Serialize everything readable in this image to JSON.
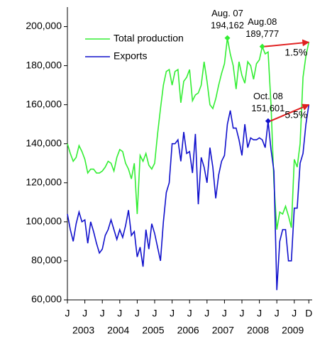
{
  "chart_data": {
    "type": "line",
    "categories": [
      "J",
      null,
      null,
      null,
      null,
      null,
      "J",
      null,
      null,
      null,
      null,
      null,
      "J",
      null,
      null,
      null,
      null,
      null,
      "J",
      null,
      null,
      null,
      null,
      null,
      "J",
      null,
      null,
      null,
      null,
      null,
      "J",
      null,
      null,
      null,
      null,
      null,
      "J",
      null,
      null,
      null,
      null,
      null,
      "J",
      null,
      null,
      null,
      null,
      null,
      "J",
      null,
      null,
      null,
      null,
      null,
      "J",
      null,
      null,
      null,
      null,
      null,
      "J",
      null,
      null,
      null,
      null,
      null,
      "J",
      null,
      null,
      null,
      null,
      null,
      "J",
      null,
      null,
      null,
      null,
      null,
      "J",
      null,
      null,
      null,
      null,
      "D"
    ],
    "year_labels": [
      "2003",
      "2004",
      "2005",
      "2006",
      "2007",
      "2008",
      "2009"
    ],
    "series": [
      {
        "name": "Total production",
        "color": "#33ee33",
        "values": [
          140000,
          135000,
          131000,
          133000,
          139000,
          136000,
          132000,
          125000,
          127000,
          127000,
          125000,
          125000,
          126000,
          128000,
          131000,
          130000,
          126000,
          133000,
          137000,
          136000,
          130000,
          127000,
          122000,
          130000,
          104000,
          134000,
          131000,
          135000,
          129000,
          127000,
          130000,
          145000,
          158000,
          170000,
          177000,
          178000,
          170000,
          177000,
          178000,
          161000,
          172000,
          174000,
          178000,
          162000,
          165000,
          166000,
          170000,
          182000,
          172000,
          160000,
          158000,
          163000,
          170000,
          176000,
          181000,
          194162,
          186000,
          180000,
          168000,
          182000,
          175000,
          171000,
          182000,
          180000,
          173000,
          181000,
          183000,
          189777,
          186000,
          187000,
          160000,
          120000,
          96000,
          105000,
          104000,
          108000,
          103000,
          97000,
          132000,
          128000,
          140000,
          174000,
          185000,
          192000
        ],
        "value_labels": [
          null,
          null,
          null,
          null,
          null,
          null,
          null,
          null,
          null,
          null,
          null,
          null,
          null,
          null,
          null,
          null,
          null,
          null,
          null,
          null,
          null,
          null,
          null,
          null,
          null,
          null,
          null,
          null,
          null,
          null,
          null,
          null,
          null,
          null,
          null,
          null,
          null,
          null,
          null,
          null,
          null,
          null,
          null,
          null,
          null,
          null,
          null,
          null,
          null,
          null,
          null,
          null,
          null,
          null,
          null,
          "194,162",
          null,
          null,
          null,
          null,
          null,
          null,
          null,
          null,
          null,
          null,
          null,
          "189,777",
          null,
          null,
          null,
          null,
          null,
          null,
          null,
          null,
          null,
          null,
          null,
          null,
          null,
          null,
          null,
          null
        ]
      },
      {
        "name": "Exports",
        "color": "#1010cc",
        "values": [
          104000,
          96000,
          90000,
          99000,
          105000,
          100000,
          101000,
          89000,
          100000,
          95000,
          89000,
          84000,
          86000,
          93000,
          96000,
          101000,
          96000,
          91000,
          96000,
          92000,
          98000,
          106000,
          93000,
          95000,
          82000,
          87000,
          77000,
          96000,
          86000,
          99000,
          94000,
          87000,
          80000,
          100000,
          115000,
          120000,
          140000,
          140000,
          142000,
          131000,
          146000,
          135000,
          136000,
          125000,
          145000,
          109000,
          133000,
          128000,
          120000,
          138000,
          128000,
          112000,
          124000,
          131000,
          134000,
          150000,
          157000,
          148000,
          148000,
          142000,
          134000,
          150000,
          138000,
          143000,
          142000,
          142000,
          143000,
          142000,
          138000,
          151601,
          137000,
          126000,
          65000,
          90000,
          96000,
          96000,
          80000,
          80000,
          107000,
          107000,
          130000,
          135000,
          150000,
          160000
        ],
        "value_labels": [
          null,
          null,
          null,
          null,
          null,
          null,
          null,
          null,
          null,
          null,
          null,
          null,
          null,
          null,
          null,
          null,
          null,
          null,
          null,
          null,
          null,
          null,
          null,
          null,
          null,
          null,
          null,
          null,
          null,
          null,
          null,
          null,
          null,
          null,
          null,
          null,
          null,
          null,
          null,
          null,
          null,
          null,
          null,
          null,
          null,
          null,
          null,
          null,
          null,
          null,
          null,
          null,
          null,
          null,
          null,
          null,
          null,
          null,
          null,
          null,
          null,
          null,
          null,
          null,
          null,
          null,
          null,
          null,
          null,
          "151,601",
          null,
          null,
          null,
          null,
          null,
          null,
          null,
          null,
          null,
          null,
          null,
          null,
          null,
          null
        ]
      }
    ],
    "point_names": [
      "Aug. 07",
      "Aug.08",
      "Oct. 08"
    ],
    "change_labels": [
      "1.5%",
      "5.5%"
    ],
    "ylim": [
      60000,
      210000
    ],
    "yticks": [
      {
        "value": 60000,
        "label": "60,000"
      },
      {
        "value": 80000,
        "label": "80,000"
      },
      {
        "value": 100000,
        "label": "100,000"
      },
      {
        "value": 120000,
        "label": "120,000"
      },
      {
        "value": 140000,
        "label": "140,000"
      },
      {
        "value": 160000,
        "label": "160,000"
      },
      {
        "value": 180000,
        "label": "180,000"
      },
      {
        "value": 200000,
        "label": "200,000"
      }
    ],
    "grid": false,
    "legend": "upper left",
    "arrow_color": "#e02020"
  }
}
